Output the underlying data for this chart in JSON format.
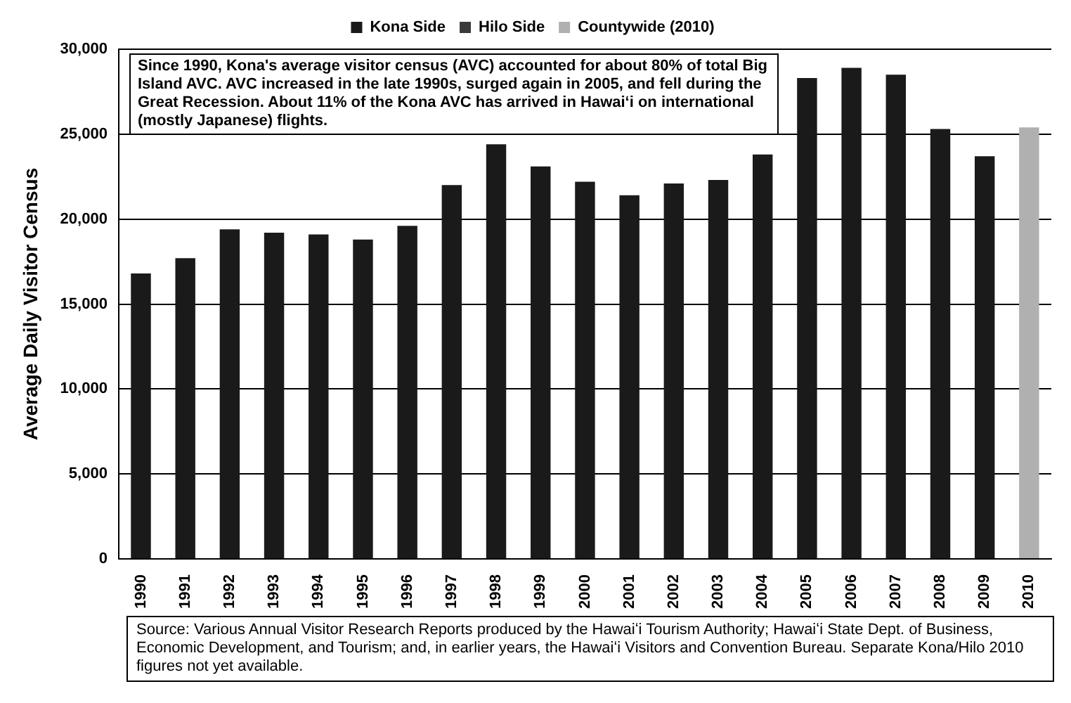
{
  "chart_data": {
    "type": "bar",
    "categories": [
      "1990",
      "1991",
      "1992",
      "1993",
      "1994",
      "1995",
      "1996",
      "1997",
      "1998",
      "1999",
      "2000",
      "2001",
      "2002",
      "2003",
      "2004",
      "2005",
      "2006",
      "2007",
      "2008",
      "2009",
      "2010"
    ],
    "series": [
      {
        "name": "Kona Side",
        "color": "#1a1a1a",
        "values": [
          16800,
          17700,
          19400,
          19200,
          19100,
          18800,
          19600,
          22000,
          24400,
          23100,
          22200,
          21400,
          22100,
          22300,
          23800,
          28300,
          28900,
          28500,
          25300,
          23700,
          null
        ]
      },
      {
        "name": "Hilo Side",
        "color": "#3a3a3a",
        "values": [
          null,
          null,
          null,
          null,
          null,
          null,
          null,
          null,
          null,
          null,
          null,
          null,
          null,
          null,
          null,
          null,
          null,
          null,
          null,
          null,
          null
        ]
      },
      {
        "name": "Countywide (2010)",
        "color": "#b0b0b0",
        "values": [
          null,
          null,
          null,
          null,
          null,
          null,
          null,
          null,
          null,
          null,
          null,
          null,
          null,
          null,
          null,
          null,
          null,
          null,
          null,
          null,
          25400
        ]
      }
    ],
    "ylabel": "Average Daily Visitor Census",
    "ylim": [
      0,
      30000
    ],
    "yticks": [
      0,
      {
        "value": 5000,
        "label": "5,000"
      },
      {
        "value": 10000,
        "label": "10,000"
      },
      {
        "value": 15000,
        "label": "15,000"
      },
      {
        "value": 20000,
        "label": "20,000"
      },
      {
        "value": 25000,
        "label": "25,000"
      },
      {
        "value": 30000,
        "label": "30,000"
      }
    ],
    "grid": "y",
    "legend": "top",
    "annotations": [
      "Since 1990, Kona's average visitor census (AVC) accounted for about 80% of total Big Island AVC. AVC increased in the late 1990s, surged again in 2005, and fell during the Great Recession. About 11% of the Kona AVC has arrived in Hawaiʻi on international (mostly Japanese) flights.",
      "Source: Various Annual Visitor Research Reports produced by the Hawaiʻi Tourism Authority; Hawaiʻi State Dept. of Business, Economic Development, and Tourism; and, in earlier years, the Hawaiʻi Visitors and Convention Bureau.  Separate Kona/Hilo 2010 figures not yet available."
    ]
  }
}
